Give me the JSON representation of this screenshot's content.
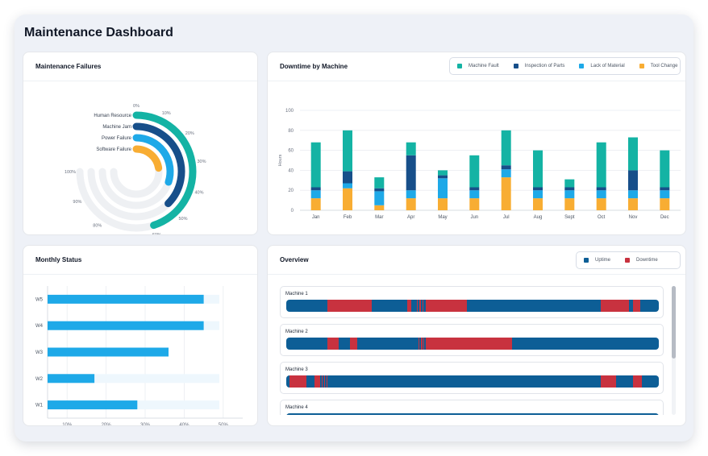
{
  "app": {
    "title": "Maintenance Dashboard"
  },
  "colors": {
    "teal": "#14b3a4",
    "navy": "#174f8a",
    "sky": "#1ea9e8",
    "amber": "#f8ad33",
    "uptime": "#0d5e96",
    "downtime": "#c8323f",
    "track": "#eef0f3"
  },
  "failures": {
    "title": "Maintenance Failures",
    "items": [
      {
        "label": "Human Resource",
        "value": 60,
        "color": "#14b3a4"
      },
      {
        "label": "Machine Jam",
        "value": 50,
        "color": "#174f8a"
      },
      {
        "label": "Power Failure",
        "value": 40,
        "color": "#1ea9e8"
      },
      {
        "label": "Software Failure",
        "value": 30,
        "color": "#f8ad33"
      }
    ],
    "ticks": [
      "0%",
      "10%",
      "20%",
      "30%",
      "40%",
      "50%",
      "60%",
      "70%",
      "80%",
      "90%",
      "100%"
    ]
  },
  "downtime": {
    "title": "Downtime by Machine",
    "legend": [
      {
        "label": "Machine Fault",
        "color": "#14b3a4"
      },
      {
        "label": "Inspection of Parts",
        "color": "#174f8a"
      },
      {
        "label": "Lack of Material",
        "color": "#1ea9e8"
      },
      {
        "label": "Tool Change",
        "color": "#f8ad33"
      }
    ]
  },
  "monthly": {
    "title": "Monthly Status"
  },
  "overview": {
    "title": "Overview",
    "legend": [
      {
        "label": "Uptime",
        "color": "#0d5e96"
      },
      {
        "label": "Downtime",
        "color": "#c8323f"
      }
    ],
    "machines": [
      {
        "label": "Machine 1",
        "segments": [
          [
            0.11,
            0.23
          ],
          [
            0.325,
            0.335
          ],
          [
            0.35,
            0.353
          ],
          [
            0.358,
            0.361
          ],
          [
            0.366,
            0.369
          ],
          [
            0.375,
            0.485
          ],
          [
            0.845,
            0.92
          ],
          [
            0.93,
            0.95
          ]
        ]
      },
      {
        "label": "Machine 2",
        "segments": [
          [
            0.11,
            0.14
          ],
          [
            0.17,
            0.19
          ],
          [
            0.355,
            0.358
          ],
          [
            0.362,
            0.365
          ],
          [
            0.368,
            0.371
          ],
          [
            0.375,
            0.605
          ]
        ]
      },
      {
        "label": "Machine 3",
        "segments": [
          [
            0.008,
            0.055
          ],
          [
            0.075,
            0.09
          ],
          [
            0.095,
            0.098
          ],
          [
            0.102,
            0.105
          ],
          [
            0.108,
            0.111
          ],
          [
            0.845,
            0.885
          ],
          [
            0.93,
            0.955
          ]
        ]
      },
      {
        "label": "Machine 4",
        "segments": []
      }
    ]
  },
  "chart_data": [
    {
      "type": "bar",
      "title": "Maintenance Failures",
      "categories": [
        "Human Resource",
        "Machine Jam",
        "Power Failure",
        "Software Failure"
      ],
      "values": [
        60,
        50,
        40,
        30
      ],
      "ylim": [
        0,
        100
      ],
      "ticks": [
        "0%",
        "10%",
        "20%",
        "30%",
        "40%",
        "50%",
        "60%",
        "70%",
        "80%",
        "90%",
        "100%"
      ]
    },
    {
      "type": "bar",
      "title": "Downtime by Machine",
      "ylabel": "Hours",
      "ylim": [
        0,
        100
      ],
      "yticks": [
        0,
        20,
        40,
        60,
        80,
        100
      ],
      "categories": [
        "Jan",
        "Feb",
        "Mar",
        "Apr",
        "May",
        "Jun",
        "Jul",
        "Aug",
        "Sept",
        "Oct",
        "Nov",
        "Dec"
      ],
      "series": [
        {
          "name": "Tool Change",
          "color": "#f8ad33",
          "values": [
            12,
            22,
            5,
            12,
            12,
            12,
            33,
            12,
            12,
            12,
            12,
            12
          ]
        },
        {
          "name": "Lack of Material",
          "color": "#1ea9e8",
          "values": [
            8,
            5,
            14,
            8,
            20,
            8,
            8,
            8,
            8,
            8,
            8,
            8
          ]
        },
        {
          "name": "Inspection of Parts",
          "color": "#174f8a",
          "values": [
            3,
            12,
            3,
            35,
            3,
            3,
            4,
            3,
            3,
            3,
            20,
            3
          ]
        },
        {
          "name": "Machine Fault",
          "color": "#14b3a4",
          "values": [
            45,
            41,
            11,
            13,
            5,
            32,
            35,
            37,
            8,
            45,
            33,
            37
          ]
        }
      ],
      "legend": "top-right",
      "grid": true
    },
    {
      "type": "bar",
      "title": "Monthly Status",
      "orientation": "horizontal",
      "categories": [
        "W5",
        "W4",
        "W3",
        "W2",
        "W1"
      ],
      "values": [
        45,
        45,
        36,
        17,
        28
      ],
      "backgrounds": [
        49,
        49,
        36,
        49,
        49
      ],
      "xlim": [
        5,
        55
      ],
      "xticks": [
        "10%",
        "20%",
        "30%",
        "40%",
        "50%"
      ],
      "grid": true
    }
  ]
}
